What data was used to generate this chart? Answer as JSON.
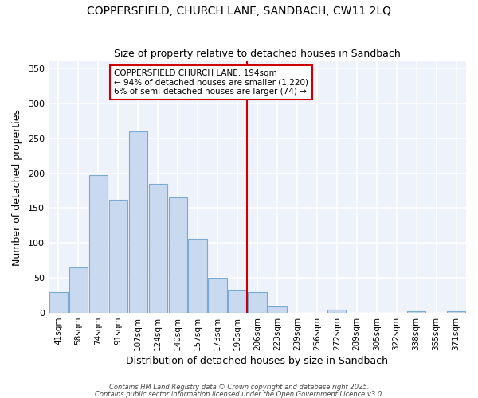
{
  "title": "COPPERSFIELD, CHURCH LANE, SANDBACH, CW11 2LQ",
  "subtitle": "Size of property relative to detached houses in Sandbach",
  "xlabel": "Distribution of detached houses by size in Sandbach",
  "ylabel": "Number of detached properties",
  "categories": [
    "41sqm",
    "58sqm",
    "74sqm",
    "91sqm",
    "107sqm",
    "124sqm",
    "140sqm",
    "157sqm",
    "173sqm",
    "190sqm",
    "206sqm",
    "223sqm",
    "239sqm",
    "256sqm",
    "272sqm",
    "289sqm",
    "305sqm",
    "322sqm",
    "338sqm",
    "355sqm",
    "371sqm"
  ],
  "values": [
    30,
    65,
    197,
    162,
    260,
    185,
    165,
    106,
    50,
    33,
    30,
    9,
    0,
    0,
    5,
    0,
    0,
    0,
    2,
    0,
    2
  ],
  "bar_color": "#c8d9f0",
  "bar_edge_color": "#7aaad0",
  "property_line_color": "#cc0000",
  "prop_line_index": 9.5,
  "annotation_text": "COPPERSFIELD CHURCH LANE: 194sqm\n← 94% of detached houses are smaller (1,220)\n6% of semi-detached houses are larger (74) →",
  "annotation_box_color": "#cc0000",
  "ylim": [
    0,
    360
  ],
  "yticks": [
    0,
    50,
    100,
    150,
    200,
    250,
    300,
    350
  ],
  "fig_bg_color": "#ffffff",
  "plot_bg_color": "#eef2fb",
  "grid_color": "#ffffff",
  "footer1": "Contains HM Land Registry data © Crown copyright and database right 2025.",
  "footer2": "Contains public sector information licensed under the Open Government Licence v3.0."
}
